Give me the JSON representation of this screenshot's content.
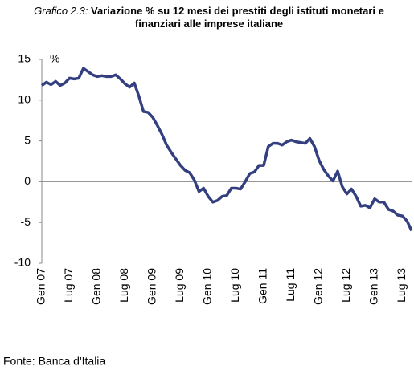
{
  "chart_data": {
    "type": "line",
    "title_prefix": "Grafico 2.3:",
    "title": "Variazione  % su 12 mesi dei prestiti degli istituti monetari e finanziari alle  imprese italiane",
    "y_unit": "%",
    "source": "Fonte: Banca d'Italia",
    "color": "#333f7f",
    "ylim": [
      -10,
      15
    ],
    "yticks": [
      -10,
      -5,
      0,
      5,
      10,
      15
    ],
    "categories": [
      "Gen 07",
      null,
      null,
      null,
      null,
      null,
      "Lug 07",
      null,
      null,
      null,
      null,
      null,
      "Gen 08",
      null,
      null,
      null,
      null,
      null,
      "Lug 08",
      null,
      null,
      null,
      null,
      null,
      "Gen 09",
      null,
      null,
      null,
      null,
      null,
      "Lug 09",
      null,
      null,
      null,
      null,
      null,
      "Gen 10",
      null,
      null,
      null,
      null,
      null,
      "Lug 10",
      null,
      null,
      null,
      null,
      null,
      "Gen 11",
      null,
      null,
      null,
      null,
      null,
      "Lug 11",
      null,
      null,
      null,
      null,
      null,
      "Gen 12",
      null,
      null,
      null,
      null,
      null,
      "Lug 12",
      null,
      null,
      null,
      null,
      null,
      "Gen 13",
      null,
      null,
      null,
      null,
      null,
      "Lug 13",
      null,
      null
    ],
    "values": [
      11.8,
      12.2,
      11.9,
      12.3,
      11.8,
      12.1,
      12.7,
      12.6,
      12.7,
      13.9,
      13.5,
      13.1,
      12.9,
      13.0,
      12.9,
      12.9,
      13.1,
      12.6,
      12.0,
      11.6,
      12.1,
      10.5,
      8.6,
      8.5,
      7.9,
      6.9,
      5.8,
      4.5,
      3.6,
      2.8,
      2.0,
      1.4,
      1.1,
      0.2,
      -1.2,
      -0.8,
      -1.8,
      -2.5,
      -2.3,
      -1.8,
      -1.7,
      -0.8,
      -0.8,
      -0.9,
      0.0,
      1.0,
      1.2,
      2.0,
      2.0,
      4.3,
      4.7,
      4.7,
      4.5,
      4.9,
      5.1,
      4.9,
      4.8,
      4.7,
      5.3,
      4.3,
      2.6,
      1.5,
      0.7,
      0.1,
      1.3,
      -0.6,
      -1.5,
      -0.9,
      -1.8,
      -3.0,
      -2.9,
      -3.2,
      -2.1,
      -2.5,
      -2.5,
      -3.4,
      -3.6,
      -4.1,
      -4.2,
      -4.8,
      -6.0
    ]
  }
}
